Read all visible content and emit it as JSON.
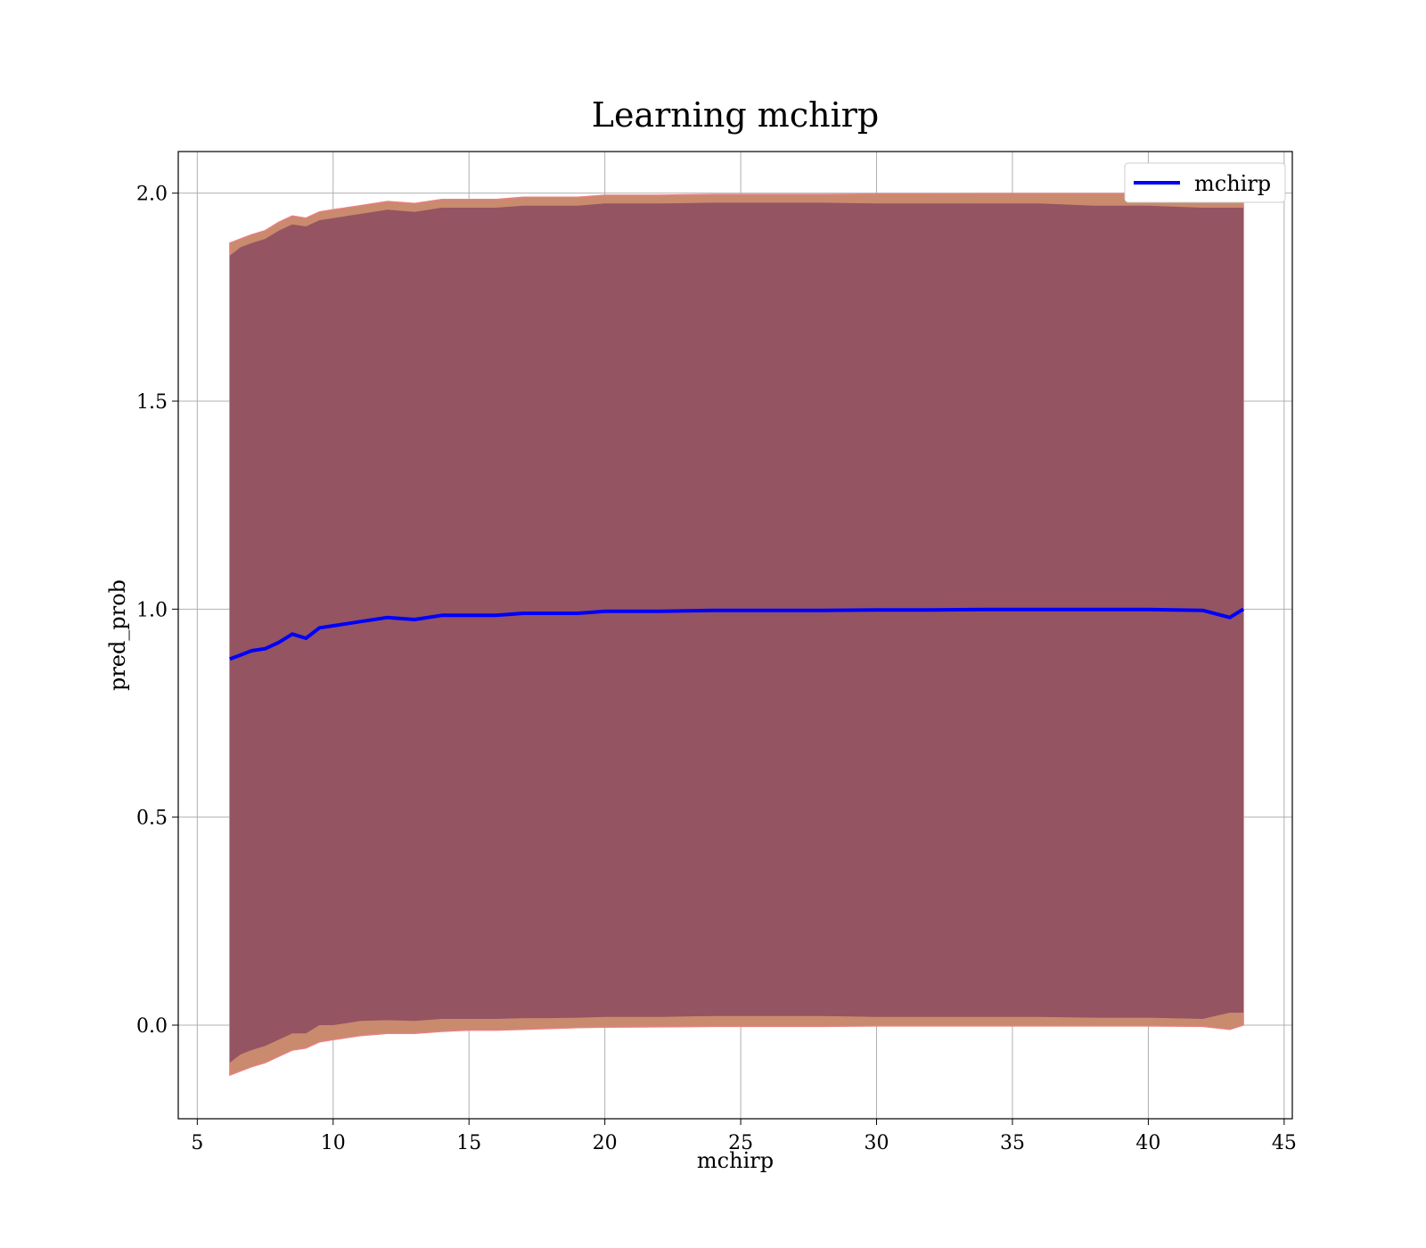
{
  "chart_data": {
    "type": "line",
    "title": "Learning mchirp",
    "xlabel": "mchirp",
    "ylabel": "pred_prob",
    "xlim": [
      4.3,
      45.3
    ],
    "ylim": [
      -0.225,
      2.1
    ],
    "xticks": [
      5,
      10,
      15,
      20,
      25,
      30,
      35,
      40,
      45
    ],
    "yticks": [
      0.0,
      0.5,
      1.0,
      1.5,
      2.0
    ],
    "xtick_labels": [
      "5",
      "10",
      "15",
      "20",
      "25",
      "30",
      "35",
      "40",
      "45"
    ],
    "ytick_labels": [
      "0.0",
      "0.5",
      "1.0",
      "1.5",
      "2.0"
    ],
    "grid": true,
    "legend": {
      "position": "top-right",
      "entries": [
        "mchirp"
      ]
    },
    "colors": {
      "line": "#0000ff",
      "inner_band": "#8b4a5f",
      "outer_band": "#c98a6e",
      "outer_edge": "#e88080"
    },
    "series": [
      {
        "name": "mchirp",
        "x": [
          6.2,
          6.6,
          7.0,
          7.5,
          8.0,
          8.5,
          9.0,
          9.5,
          10.0,
          10.5,
          11.0,
          12.0,
          13.0,
          14.0,
          15.0,
          16.0,
          17.0,
          18.0,
          19.0,
          20.0,
          22.0,
          24.0,
          26.0,
          28.0,
          30.0,
          32.0,
          34.0,
          36.0,
          38.0,
          40.0,
          42.0,
          43.0,
          43.5
        ],
        "y": [
          0.88,
          0.89,
          0.9,
          0.905,
          0.92,
          0.94,
          0.93,
          0.955,
          0.96,
          0.965,
          0.97,
          0.98,
          0.975,
          0.985,
          0.985,
          0.985,
          0.99,
          0.99,
          0.99,
          0.995,
          0.995,
          0.997,
          0.997,
          0.997,
          0.998,
          0.998,
          0.999,
          0.999,
          0.999,
          0.999,
          0.997,
          0.98,
          1.0
        ],
        "inner_upper": [
          1.85,
          1.87,
          1.88,
          1.89,
          1.91,
          1.925,
          1.92,
          1.935,
          1.94,
          1.945,
          1.95,
          1.96,
          1.955,
          1.965,
          1.965,
          1.965,
          1.97,
          1.97,
          1.97,
          1.975,
          1.975,
          1.977,
          1.977,
          1.977,
          1.975,
          1.975,
          1.975,
          1.975,
          1.97,
          1.97,
          1.965,
          1.965,
          1.965
        ],
        "inner_lower": [
          -0.09,
          -0.07,
          -0.06,
          -0.05,
          -0.035,
          -0.02,
          -0.02,
          0.0,
          0.0,
          0.005,
          0.01,
          0.012,
          0.01,
          0.015,
          0.015,
          0.015,
          0.017,
          0.017,
          0.018,
          0.02,
          0.02,
          0.022,
          0.022,
          0.022,
          0.02,
          0.02,
          0.02,
          0.02,
          0.018,
          0.018,
          0.015,
          0.03,
          0.03
        ],
        "outer_upper": [
          1.88,
          1.89,
          1.9,
          1.91,
          1.93,
          1.945,
          1.94,
          1.955,
          1.96,
          1.965,
          1.97,
          1.98,
          1.975,
          1.985,
          1.985,
          1.985,
          1.99,
          1.99,
          1.99,
          1.995,
          1.995,
          1.997,
          1.997,
          1.997,
          1.998,
          1.998,
          1.999,
          1.999,
          1.999,
          1.999,
          1.995,
          1.995,
          1.995
        ],
        "outer_lower": [
          -0.12,
          -0.11,
          -0.1,
          -0.09,
          -0.075,
          -0.06,
          -0.055,
          -0.04,
          -0.035,
          -0.03,
          -0.025,
          -0.02,
          -0.02,
          -0.015,
          -0.012,
          -0.012,
          -0.01,
          -0.008,
          -0.006,
          -0.005,
          -0.004,
          -0.003,
          -0.003,
          -0.003,
          -0.002,
          -0.002,
          -0.002,
          -0.002,
          -0.002,
          -0.002,
          -0.003,
          -0.01,
          0.0
        ]
      }
    ]
  }
}
